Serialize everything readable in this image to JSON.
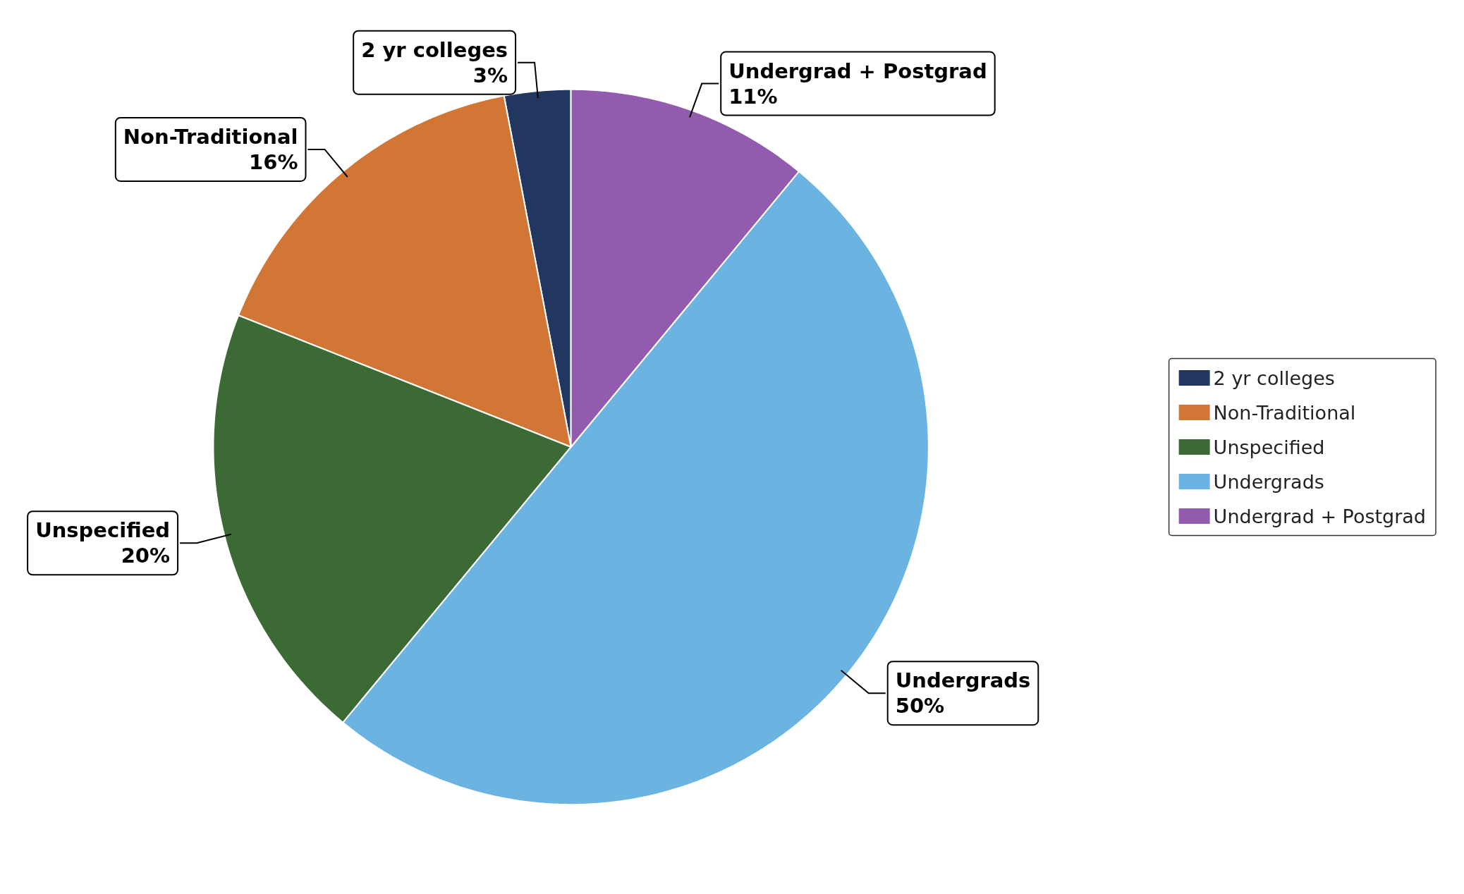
{
  "chart_data": {
    "type": "pie",
    "categories": [
      "2 yr colleges",
      "Non-Traditional",
      "Unspecified",
      "Undergrads",
      "Undergrad + Postgrad"
    ],
    "values": [
      3,
      16,
      20,
      50,
      11
    ],
    "value_labels": [
      "3%",
      "16%",
      "20%",
      "50%",
      "11%"
    ],
    "colors": [
      "#22375f",
      "#d27636",
      "#3c6a35",
      "#6bb4e2",
      "#925bae"
    ],
    "legend": "right"
  }
}
